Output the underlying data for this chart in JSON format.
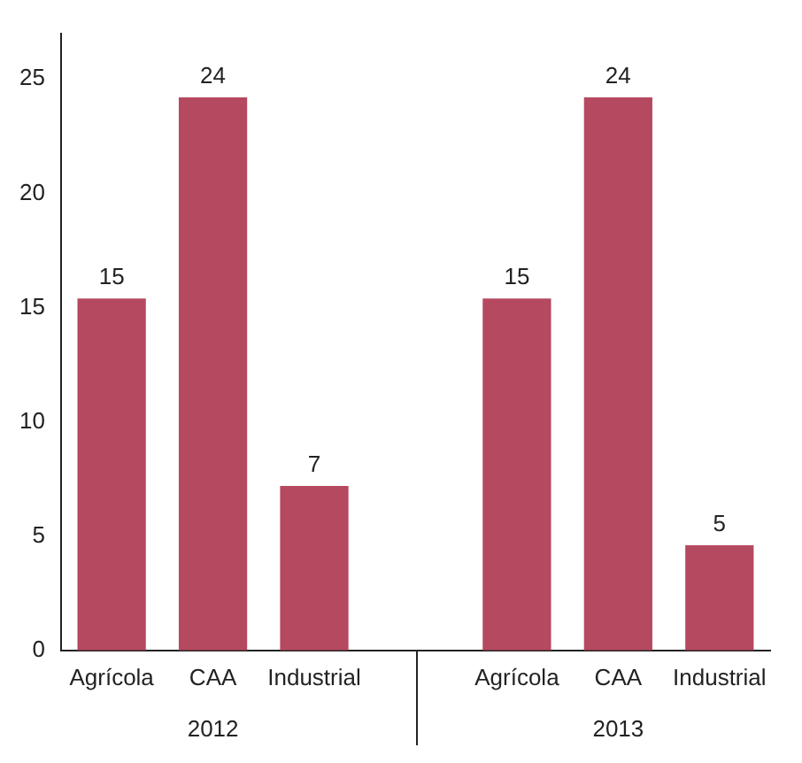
{
  "chart_data": {
    "type": "bar",
    "categories": [
      "Agrícola",
      "CAA",
      "Industrial",
      null,
      "Agrícola",
      "CAA",
      "Industrial"
    ],
    "values": [
      15.4,
      24.2,
      7.2,
      null,
      15.4,
      24.2,
      4.6
    ],
    "value_labels": [
      "15",
      "24",
      "7",
      null,
      "15",
      "24",
      "5"
    ],
    "color": "#b5495f",
    "ylim": [
      0,
      27
    ],
    "yticks": [
      0,
      5,
      10,
      15,
      20,
      25
    ],
    "annotations": [
      "2012",
      "2013"
    ],
    "grid": false,
    "legend": false
  }
}
